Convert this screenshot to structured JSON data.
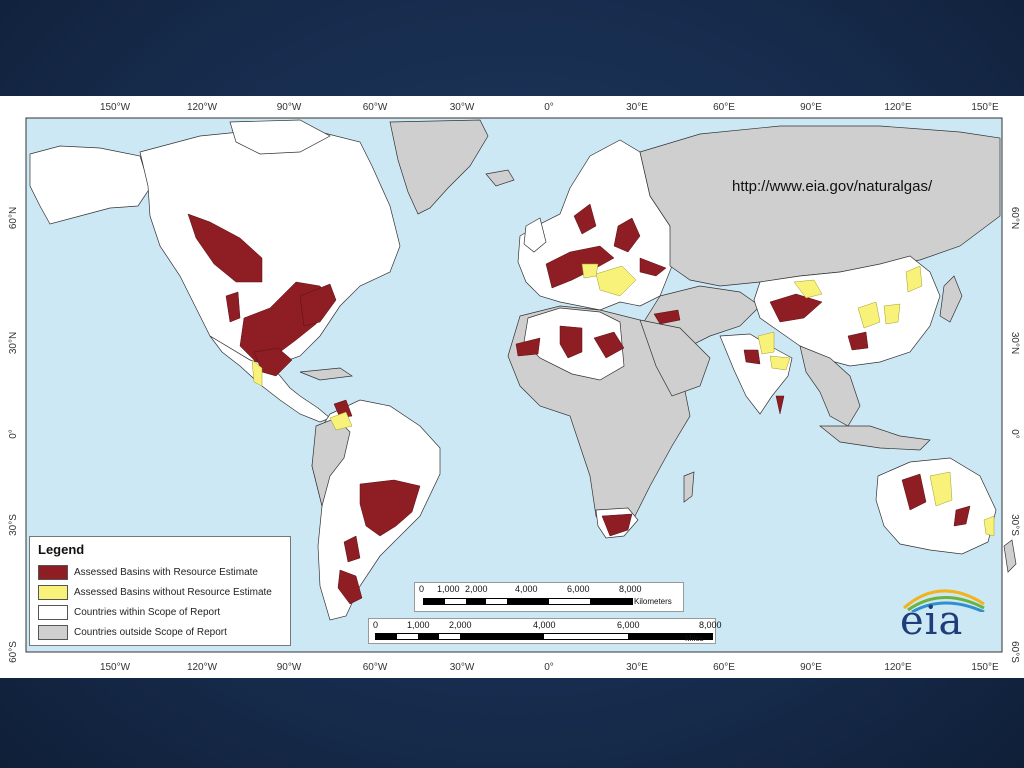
{
  "colors": {
    "ocean": "#cde8f5",
    "in_scope": "#ffffff",
    "out_scope": "#cfcfcf",
    "assessed": "#8e1d24",
    "assessed_no_estimate": "#f8f27a",
    "border": "#222222"
  },
  "map": {
    "source_url": "http://www.eia.gov/naturalgas/",
    "longitude_labels": [
      "150°W",
      "120°W",
      "90°W",
      "60°W",
      "30°W",
      "0°",
      "30°E",
      "60°E",
      "90°E",
      "120°E",
      "150°E"
    ],
    "latitude_labels": [
      "60°N",
      "30°N",
      "0°",
      "30°S",
      "60°S"
    ]
  },
  "legend": {
    "title": "Legend",
    "items": [
      {
        "label": "Assessed Basins with Resource Estimate",
        "color": "#8e1d24"
      },
      {
        "label": "Assessed Basins without Resource Estimate",
        "color": "#f8f27a"
      },
      {
        "label": "Countries within Scope of Report",
        "color": "#ffffff"
      },
      {
        "label": "Countries outside Scope of Report",
        "color": "#cfcfcf"
      }
    ]
  },
  "scale_km": {
    "ticks": [
      "0",
      "1,000",
      "2,000",
      "4,000",
      "6,000",
      "8,000"
    ],
    "unit": "Kilometers"
  },
  "scale_mi": {
    "ticks": [
      "0",
      "1,000",
      "2,000",
      "4,000",
      "6,000",
      "8,000"
    ],
    "unit": "Miles"
  },
  "logo": {
    "text": "eia"
  }
}
